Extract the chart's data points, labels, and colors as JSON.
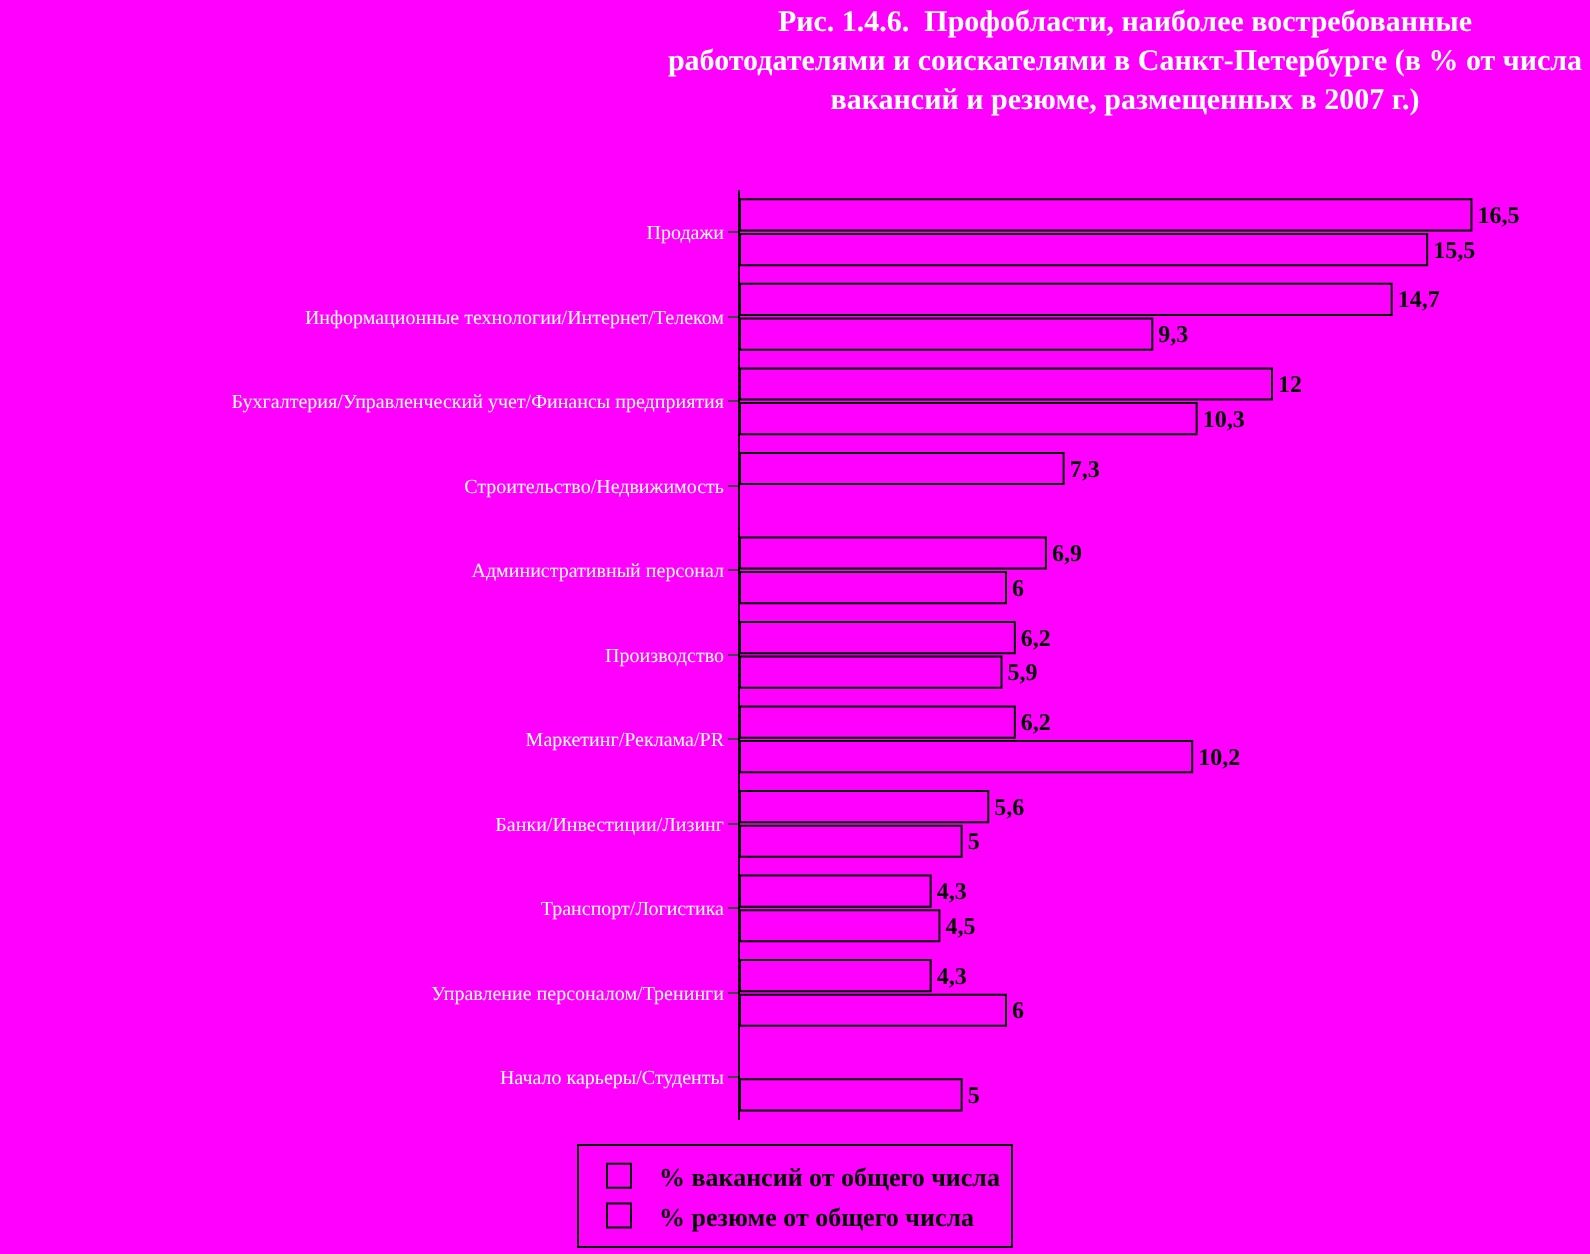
{
  "chart_data": {
    "type": "bar",
    "orientation": "horizontal",
    "title": "Рис. 1.4.6.  Профобласти, наиболее востребованные работодателями и соискателями в Санкт-Петербурге (в % от числа вакансий и резюме, размещенных в 2007 г.)",
    "categories": [
      "Продажи",
      "Информационные технологии/Интернет/Телеком",
      "Бухгалтерия/Управленческий учет/Финансы предприятия",
      "Строительство/Недвижимость",
      "Административный персонал",
      "Производство",
      "Маркетинг/Реклама/PR",
      "Банки/Инвестиции/Лизинг",
      "Транспорт/Логистика",
      "Управление персоналом/Тренинги",
      "Начало карьеры/Студенты"
    ],
    "series": [
      {
        "name": "% вакансий от общего числа",
        "color": "#ff00ff",
        "values": [
          16.5,
          14.7,
          12,
          7.3,
          6.9,
          6.2,
          6.2,
          5.6,
          4.3,
          4.3,
          null
        ],
        "value_labels": [
          "16,5",
          "14,7",
          "12",
          "7,3",
          "6,9",
          "6,2",
          "6,2",
          "5,6",
          "4,3",
          "4,3",
          null
        ]
      },
      {
        "name": "% резюме от общего числа",
        "color": "#ff00ff",
        "values": [
          15.5,
          9.3,
          10.3,
          null,
          6,
          5.9,
          10.2,
          5,
          4.5,
          6,
          5
        ],
        "value_labels": [
          "15,5",
          "9,3",
          "10,3",
          null,
          "6",
          "5,9",
          "10,2",
          "5",
          "4,5",
          "6",
          "5"
        ]
      }
    ],
    "tick_labels": "y",
    "legend": "bottom"
  }
}
